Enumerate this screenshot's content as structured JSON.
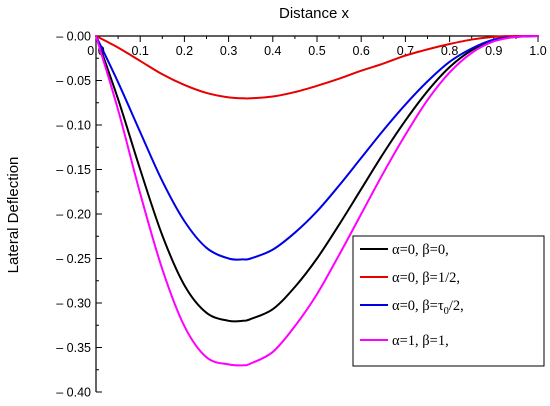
{
  "chart_data": {
    "type": "line",
    "title": "",
    "xlabel": "Distance x",
    "ylabel": "Lateral Deflection",
    "xlim": [
      0.0,
      1.0
    ],
    "ylim": [
      -0.4,
      0.0
    ],
    "x_axis_position": "top",
    "grid": false,
    "legend_position": "bottom-right",
    "x_ticks": [
      0.0,
      0.1,
      0.2,
      0.3,
      0.4,
      0.5,
      0.6,
      0.7,
      0.8,
      0.9,
      1.0
    ],
    "x_tick_labels": [
      "0.0",
      "0.1",
      "0.2",
      "0.3",
      "0.4",
      "0.5",
      "0.6",
      "0.7",
      "0.8",
      "0.9",
      "1.0"
    ],
    "y_ticks": [
      0.0,
      -0.05,
      -0.1,
      -0.15,
      -0.2,
      -0.25,
      -0.3,
      -0.35,
      -0.4
    ],
    "y_tick_labels": [
      "– 0.00",
      "– 0.05",
      "– 0.10",
      "– 0.15",
      "– 0.20",
      "– 0.25",
      "– 0.30",
      "– 0.35",
      "– 0.40"
    ],
    "x": [
      0.0,
      0.05,
      0.1,
      0.15,
      0.2,
      0.25,
      0.3,
      0.333,
      0.35,
      0.4,
      0.45,
      0.5,
      0.55,
      0.6,
      0.65,
      0.7,
      0.75,
      0.8,
      0.85,
      0.9,
      0.95,
      1.0
    ],
    "series": [
      {
        "name": "α=0, β=0,",
        "color": "#000000",
        "values": [
          0.0,
          -0.071,
          -0.15,
          -0.224,
          -0.28,
          -0.311,
          -0.32,
          -0.32,
          -0.318,
          -0.307,
          -0.282,
          -0.25,
          -0.212,
          -0.172,
          -0.132,
          -0.095,
          -0.062,
          -0.035,
          -0.016,
          -0.005,
          -0.001,
          0.0
        ]
      },
      {
        "name": "α=0, β=1/2,",
        "color": "#e60000",
        "values": [
          0.0,
          -0.013,
          -0.028,
          -0.043,
          -0.055,
          -0.064,
          -0.069,
          -0.07,
          -0.07,
          -0.068,
          -0.063,
          -0.056,
          -0.048,
          -0.039,
          -0.031,
          -0.022,
          -0.015,
          -0.009,
          -0.004,
          -0.001,
          0.0,
          0.0
        ]
      },
      {
        "name": "α=0, β=τ₀/2,",
        "color": "#0000e6",
        "values": [
          0.0,
          -0.052,
          -0.108,
          -0.163,
          -0.208,
          -0.238,
          -0.25,
          -0.251,
          -0.25,
          -0.24,
          -0.221,
          -0.197,
          -0.168,
          -0.137,
          -0.106,
          -0.077,
          -0.051,
          -0.029,
          -0.014,
          -0.004,
          -0.001,
          0.0
        ]
      },
      {
        "name": "α=1, β=1,",
        "color": "#ff00ff",
        "values": [
          0.0,
          -0.083,
          -0.177,
          -0.262,
          -0.326,
          -0.361,
          -0.369,
          -0.37,
          -0.368,
          -0.355,
          -0.326,
          -0.29,
          -0.246,
          -0.2,
          -0.154,
          -0.111,
          -0.072,
          -0.041,
          -0.019,
          -0.006,
          -0.001,
          0.0
        ]
      }
    ]
  },
  "legend": {
    "line1": {
      "prefix": "α=0, β=0,",
      "sub": "",
      "suffix": ""
    },
    "line2": {
      "prefix": "α=0, β=1/2,",
      "sub": "",
      "suffix": ""
    },
    "line3": {
      "prefix": "α=0, β=τ",
      "sub": "0",
      "suffix": "/2,"
    },
    "line4": {
      "prefix": "α=1, β=1,",
      "sub": "",
      "suffix": ""
    }
  }
}
